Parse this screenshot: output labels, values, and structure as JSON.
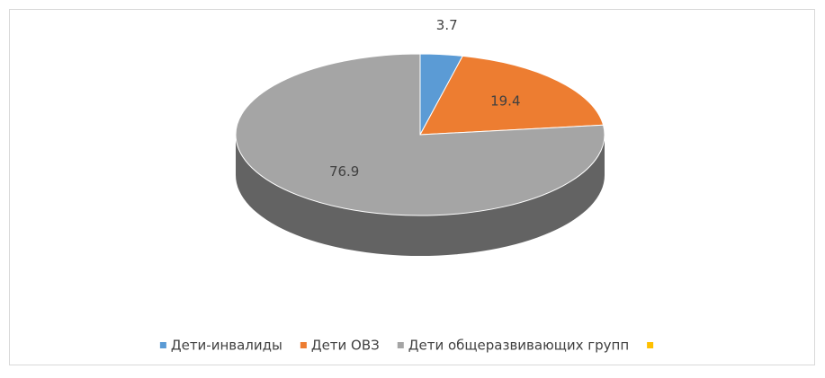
{
  "chart_data": {
    "type": "pie",
    "categories": [
      "Дети-инвалиды",
      "Дети ОВЗ",
      "Дети общеразвивающих групп",
      null
    ],
    "values": [
      3.7,
      19.4,
      76.9,
      0
    ],
    "colors": [
      "#5b9bd5",
      "#ed7d31",
      "#a5a5a5",
      "#ffc000"
    ],
    "legend": "bottom"
  }
}
